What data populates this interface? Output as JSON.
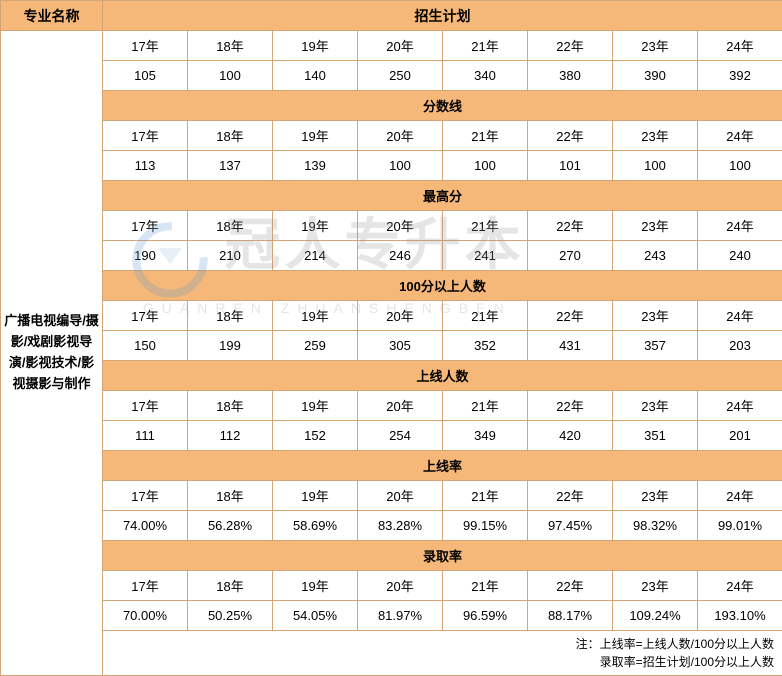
{
  "headers": {
    "major_name": "专业名称",
    "enrollment_plan": "招生计划",
    "score_line": "分数线",
    "highest_score": "最高分",
    "above_100": "100分以上人数",
    "online_count": "上线人数",
    "online_rate": "上线率",
    "admission_rate": "录取率"
  },
  "major": "广播电视编导/摄影/戏剧影视导演/影视技术/影视摄影与制作",
  "years": [
    "17年",
    "18年",
    "19年",
    "20年",
    "21年",
    "22年",
    "23年",
    "24年"
  ],
  "sections": {
    "enrollment_plan": {
      "values": [
        "105",
        "100",
        "140",
        "250",
        "340",
        "380",
        "390",
        "392"
      ]
    },
    "score_line": {
      "values": [
        "113",
        "137",
        "139",
        "100",
        "100",
        "101",
        "100",
        "100"
      ]
    },
    "highest_score": {
      "values": [
        "190",
        "210",
        "214",
        "246",
        "241",
        "270",
        "243",
        "240"
      ]
    },
    "above_100": {
      "values": [
        "150",
        "199",
        "259",
        "305",
        "352",
        "431",
        "357",
        "203"
      ]
    },
    "online_count": {
      "values": [
        "111",
        "112",
        "152",
        "254",
        "349",
        "420",
        "351",
        "201"
      ]
    },
    "online_rate": {
      "values": [
        "74.00%",
        "56.28%",
        "58.69%",
        "83.28%",
        "99.15%",
        "97.45%",
        "98.32%",
        "99.01%"
      ]
    },
    "admission_rate": {
      "values": [
        "70.00%",
        "50.25%",
        "54.05%",
        "81.97%",
        "96.59%",
        "88.17%",
        "109.24%",
        "193.10%"
      ]
    }
  },
  "notes": {
    "line1": "注：上线率=上线人数/100分以上人数",
    "line2": "录取率=招生计划/100分以上人数"
  },
  "watermark": {
    "main": "冠人专升本",
    "sub": "GUANREN ZHUANSHENGBEN"
  },
  "colors": {
    "border": "#d4a574",
    "header_bg": "#f5b878",
    "data_bg": "#ffffff"
  }
}
